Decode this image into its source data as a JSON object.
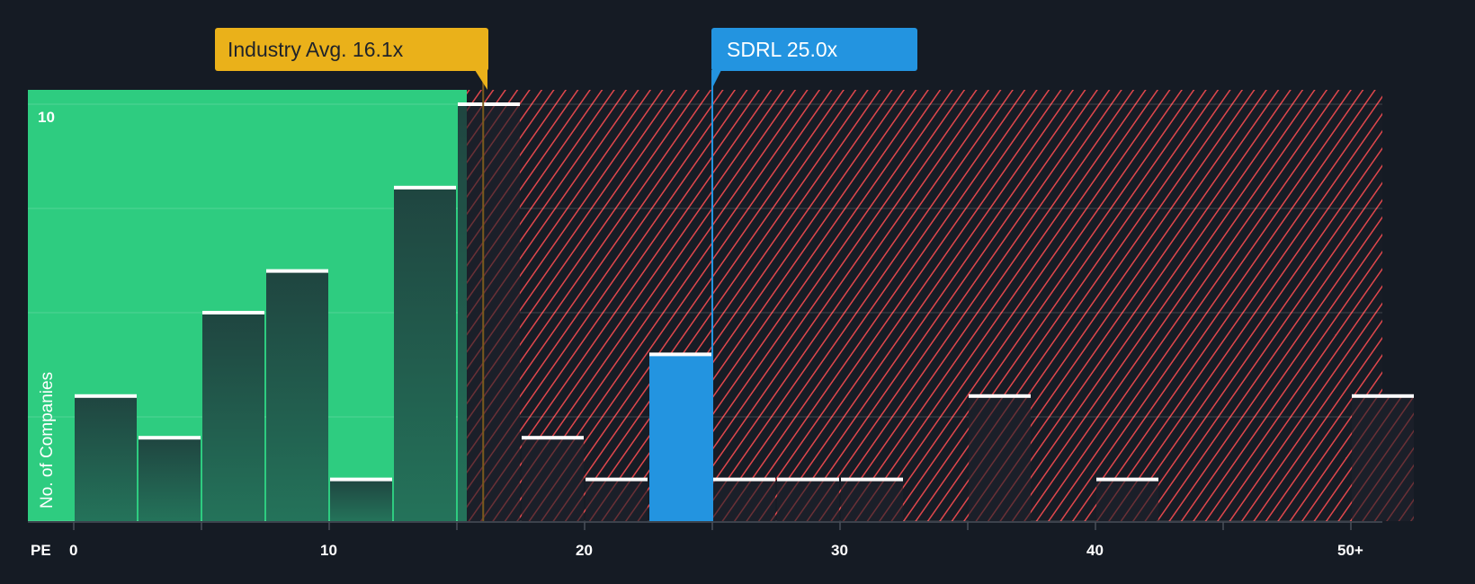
{
  "chart_data": {
    "type": "bar",
    "title": "",
    "xlabel": "PE",
    "ylabel": "No. of Companies",
    "ylim": [
      0,
      10
    ],
    "ytick_labels": [
      "10"
    ],
    "xtick_labels": [
      "0",
      "10",
      "20",
      "30",
      "40",
      "50+"
    ],
    "xtick_values": [
      0,
      10,
      20,
      30,
      40,
      50
    ],
    "bin_width": 2.5,
    "bins": [
      {
        "start": 0,
        "end": 2.5,
        "count": 3
      },
      {
        "start": 2.5,
        "end": 5,
        "count": 2
      },
      {
        "start": 5,
        "end": 7.5,
        "count": 5
      },
      {
        "start": 7.5,
        "end": 10,
        "count": 6
      },
      {
        "start": 10,
        "end": 12.5,
        "count": 1
      },
      {
        "start": 12.5,
        "end": 15,
        "count": 8
      },
      {
        "start": 15,
        "end": 17.5,
        "count": 10
      },
      {
        "start": 17.5,
        "end": 20,
        "count": 2
      },
      {
        "start": 20,
        "end": 22.5,
        "count": 1
      },
      {
        "start": 22.5,
        "end": 25,
        "count": 4,
        "highlight": true
      },
      {
        "start": 25,
        "end": 27.5,
        "count": 1
      },
      {
        "start": 27.5,
        "end": 30,
        "count": 1
      },
      {
        "start": 30,
        "end": 32.5,
        "count": 1
      },
      {
        "start": 32.5,
        "end": 35,
        "count": 0
      },
      {
        "start": 35,
        "end": 37.5,
        "count": 3
      },
      {
        "start": 37.5,
        "end": 40,
        "count": 0
      },
      {
        "start": 40,
        "end": 42.5,
        "count": 1
      },
      {
        "start": 42.5,
        "end": 45,
        "count": 0
      },
      {
        "start": 45,
        "end": 47.5,
        "count": 0
      },
      {
        "start": 47.5,
        "end": 50,
        "count": 0
      },
      {
        "start": 50,
        "end": 52.5,
        "count": 3,
        "label": "50+"
      }
    ],
    "markers": [
      {
        "name": "Industry Avg.",
        "label": "Industry Avg. 16.1x",
        "value": 16.1,
        "color": "#eab11a"
      },
      {
        "name": "SDRL",
        "label": "SDRL 25.0x",
        "value": 25.0,
        "color": "#2394e0"
      }
    ],
    "regions": {
      "undervalued_end": 15.6,
      "undervalued_color": "#2ecc80",
      "overvalued_color": "#e0474c"
    },
    "grid": true,
    "legend": "none"
  },
  "colors": {
    "background": "#151b24",
    "green_region": "#2ecc80",
    "bar_dark": "#1f4a40",
    "bar_highlight": "#2394e0",
    "hatch": "#e0474c",
    "bar_cap": "#ffffff"
  },
  "callouts": {
    "industry": "Industry Avg. 16.1x",
    "company": "SDRL 25.0x"
  },
  "axis": {
    "x_title": "PE",
    "y_title": "No. of Companies",
    "y_top_tick": "10"
  }
}
